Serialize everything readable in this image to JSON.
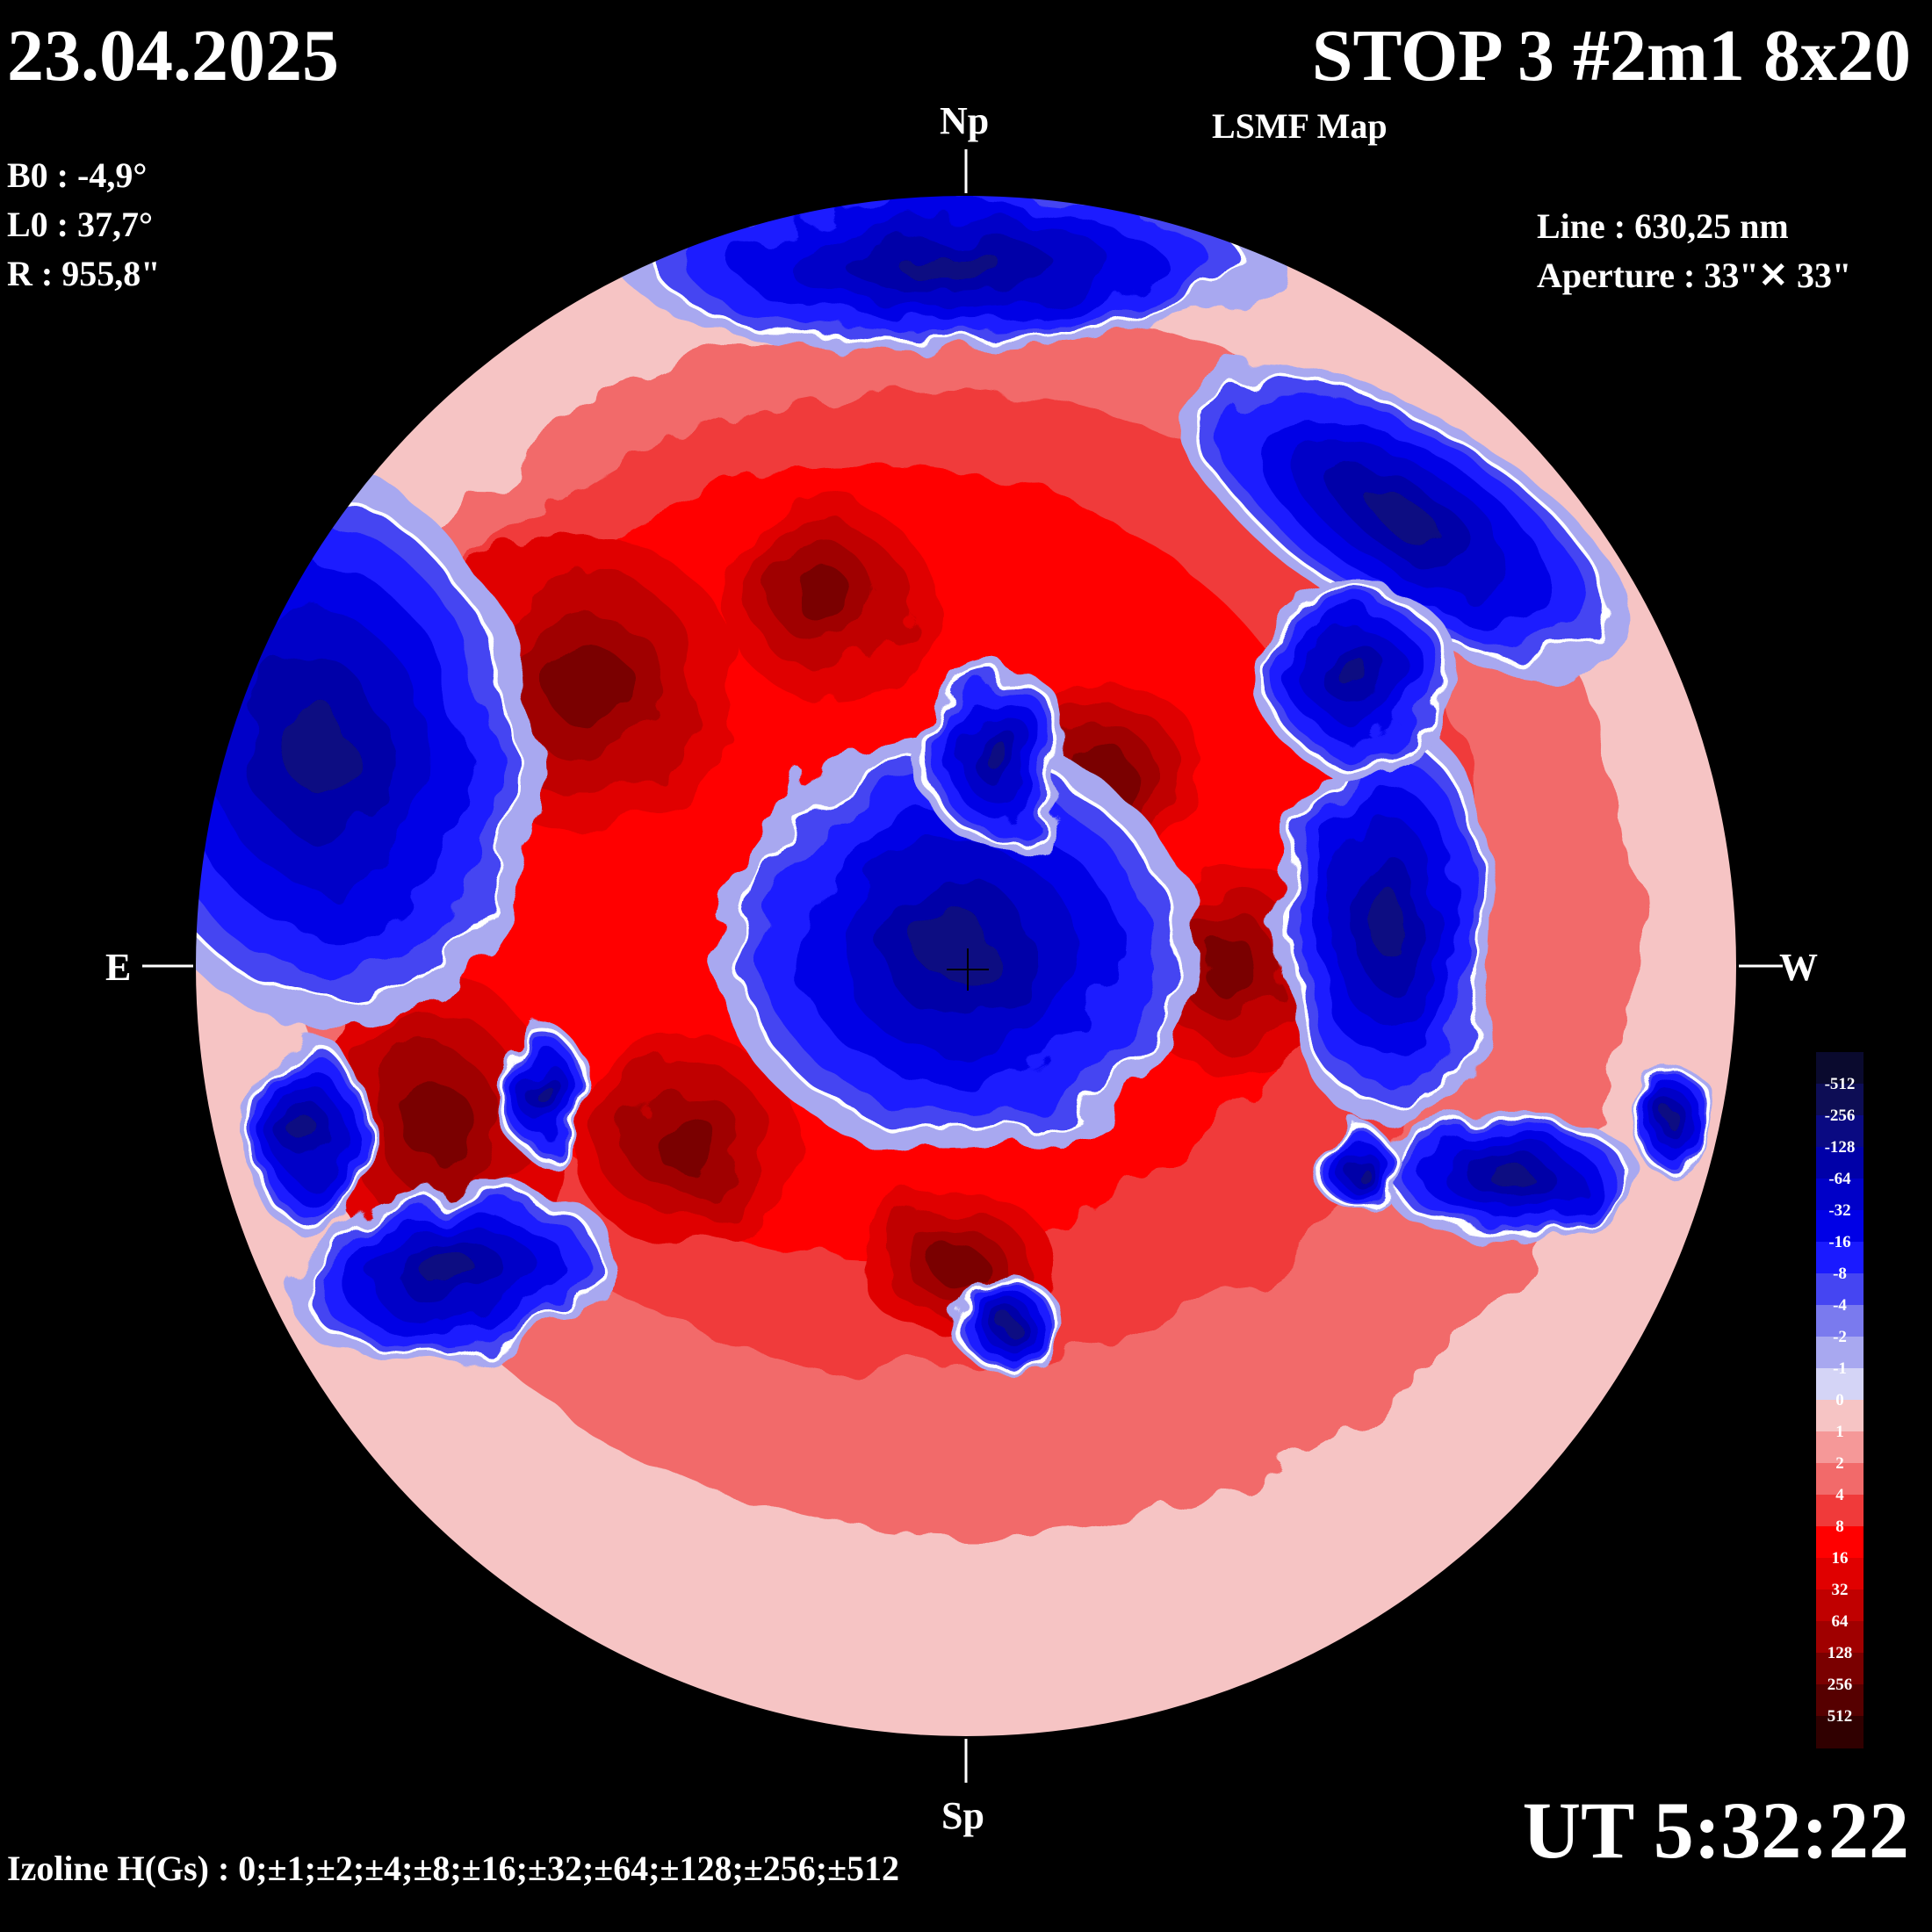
{
  "header": {
    "date": "23.04.2025",
    "title": "STOP 3 #2m1 8x20",
    "subtitle": "LSMF  Map"
  },
  "params": {
    "b0": "B0 : -4,9°",
    "l0": "L0 : 37,7°",
    "r": "R  : 955,8\"",
    "line": "Line :  630,25 nm",
    "aperture": "Aperture : 33\"✕ 33\""
  },
  "compass": {
    "north": "Np",
    "south": "Sp",
    "east": "E",
    "west": "W"
  },
  "footer": {
    "time": "UT 5:32:22",
    "izoline": "Izoline H(Gs) : 0;±1;±2;±4;±8;±16;±32;±64;±128;±256;±512"
  },
  "legend": {
    "levels": [
      "-512",
      "-256",
      "-128",
      "-64",
      "-32",
      "-16",
      "-8",
      "-4",
      "-2",
      "-1",
      "0",
      "1",
      "2",
      "4",
      "8",
      "16",
      "32",
      "64",
      "128",
      "256",
      "512"
    ],
    "colors": [
      "#0a0a2e",
      "#0d0d55",
      "#0a0a82",
      "#0000a8",
      "#0000c8",
      "#0000e6",
      "#1a1aff",
      "#4545f2",
      "#7a7aee",
      "#a8a8f0",
      "#d4d4f6",
      "#f6c4c4",
      "#f59898",
      "#f26a6a",
      "#f03a3a",
      "#ff0000",
      "#e00000",
      "#c00000",
      "#a00000",
      "#7a0000",
      "#560000",
      "#300000"
    ]
  },
  "map": {
    "background_field": "positive",
    "negative_regions": [
      "east-limb",
      "north-cap-upper",
      "north-east-cap",
      "central-disk",
      "central-north",
      "west-central",
      "north-west",
      "east-central-small",
      "east-lower",
      "south-central",
      "west-lower",
      "west-edge",
      "central-south-small",
      "south-east-edge"
    ],
    "positive_cores": [
      "north-east-core",
      "north-core",
      "center-west-core",
      "west-core",
      "east-core",
      "south-core",
      "south-east-core"
    ]
  }
}
